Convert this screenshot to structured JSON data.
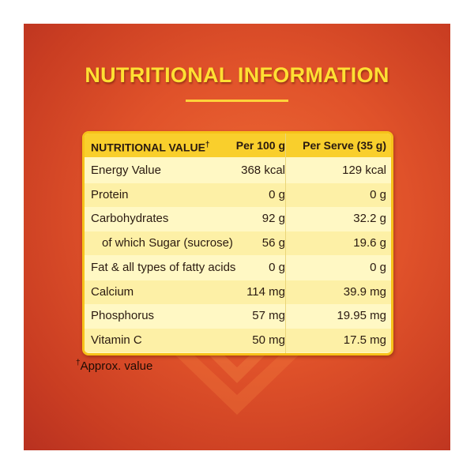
{
  "title": "NUTRITIONAL INFORMATION",
  "table": {
    "header": [
      "NUTRITIONAL VALUE",
      "Per 100 g",
      "Per Serve (35 g)"
    ],
    "header_mark": "†",
    "rows": [
      [
        "Energy Value",
        "368 kcal",
        "129 kcal"
      ],
      [
        "Protein",
        "0 g",
        "0 g"
      ],
      [
        "Carbohydrates",
        "92 g",
        "32.2 g"
      ],
      [
        "of which Sugar (sucrose)",
        "56 g",
        "19.6 g"
      ],
      [
        "Fat & all types of fatty acids",
        "0 g",
        "0 g"
      ],
      [
        "Calcium",
        "114 mg",
        "39.9 mg"
      ],
      [
        "Phosphorus",
        "57 mg",
        "19.95 mg"
      ],
      [
        "Vitamin C",
        "50 mg",
        "17.5 mg"
      ]
    ]
  },
  "footnote": {
    "mark": "†",
    "text": "Approx. value"
  }
}
